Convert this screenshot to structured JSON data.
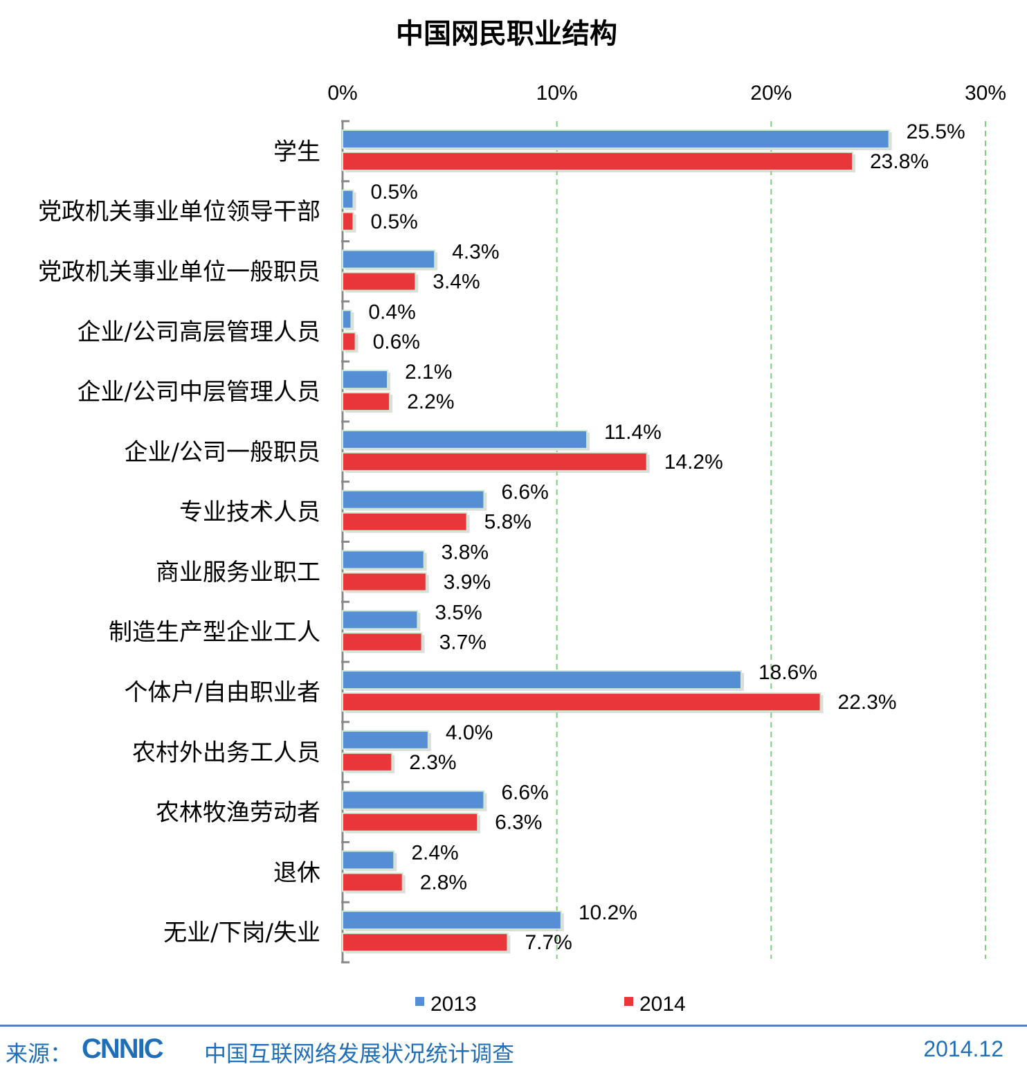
{
  "chart_data": {
    "type": "bar",
    "orientation": "horizontal",
    "title": "中国网民职业结构",
    "categories": [
      "学生",
      "党政机关事业单位领导干部",
      "党政机关事业单位一般职员",
      "企业/公司高层管理人员",
      "企业/公司中层管理人员",
      "企业/公司一般职员",
      "专业技术人员",
      "商业服务业职工",
      "制造生产型企业工人",
      "个体户/自由职业者",
      "农村外出务工人员",
      "农林牧渔劳动者",
      "退休",
      "无业/下岗/失业"
    ],
    "series": [
      {
        "name": "2013",
        "color": "#558ed5",
        "values": [
          25.5,
          0.5,
          4.3,
          0.4,
          2.1,
          11.4,
          6.6,
          3.8,
          3.5,
          18.6,
          4.0,
          6.6,
          2.4,
          10.2
        ],
        "labels": [
          "25.5%",
          "0.5%",
          "4.3%",
          "0.4%",
          "2.1%",
          "11.4%",
          "6.6%",
          "3.8%",
          "3.5%",
          "18.6%",
          "4.0%",
          "6.6%",
          "2.4%",
          "10.2%"
        ]
      },
      {
        "name": "2014",
        "color": "#e8363a",
        "values": [
          23.8,
          0.5,
          3.4,
          0.6,
          2.2,
          14.2,
          5.8,
          3.9,
          3.7,
          22.3,
          2.3,
          6.3,
          2.8,
          7.7
        ],
        "labels": [
          "23.8%",
          "0.5%",
          "3.4%",
          "0.6%",
          "2.2%",
          "14.2%",
          "5.8%",
          "3.9%",
          "3.7%",
          "22.3%",
          "2.3%",
          "6.3%",
          "2.8%",
          "7.7%"
        ]
      }
    ],
    "xlim": [
      0,
      30
    ],
    "xticks": [
      "0%",
      "10%",
      "20%",
      "30%"
    ],
    "grid": true,
    "legend_position": "bottom"
  },
  "footer": {
    "source_label": "来源：",
    "logo_text": "CNNIC",
    "report_name": "中国互联网络发展状况统计调查",
    "date": "2014.12"
  }
}
